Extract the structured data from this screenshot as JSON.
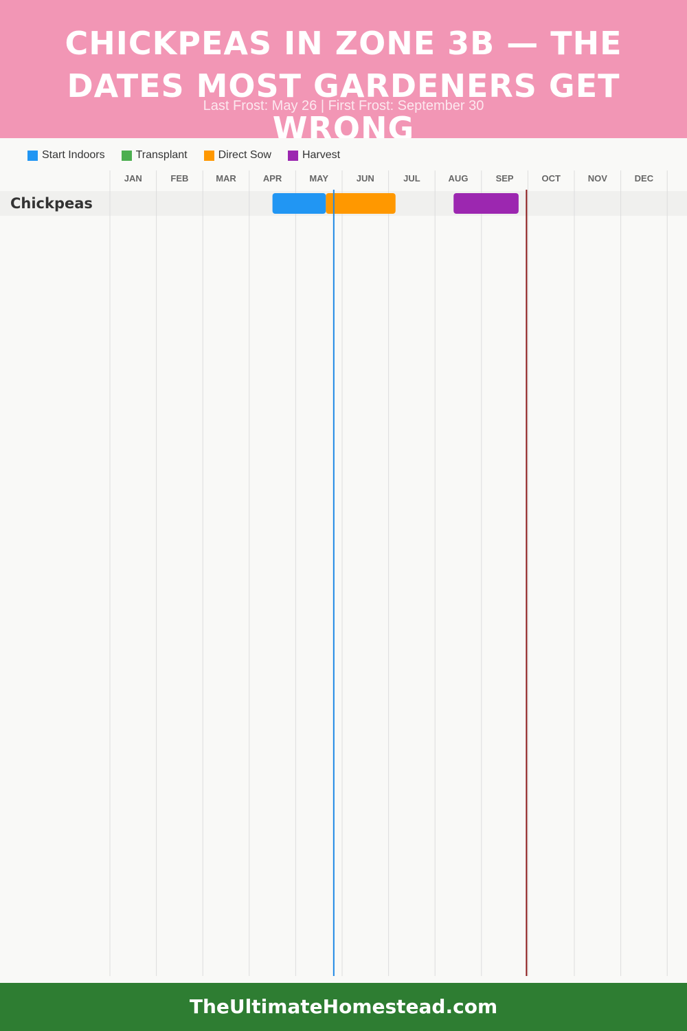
{
  "header": {
    "title": "Chickpeas in Zone 3b — The Dates Most Gardeners Get Wrong",
    "subtitle": "Last Frost: May 26 | First Frost: September 30"
  },
  "colors": {
    "header_bg": "#f296b5",
    "footer_bg": "#2e7d32",
    "last_frost_line": "#1e88e5",
    "first_frost_line": "#8b1a1a"
  },
  "legend": [
    {
      "label": "Start Indoors",
      "color": "#2196f3"
    },
    {
      "label": "Transplant",
      "color": "#4caf50"
    },
    {
      "label": "Direct Sow",
      "color": "#ff9800"
    },
    {
      "label": "Harvest",
      "color": "#9c27b0"
    }
  ],
  "chart_data": {
    "type": "gantt",
    "months": [
      "JAN",
      "FEB",
      "MAR",
      "APR",
      "MAY",
      "JUN",
      "JUL",
      "AUG",
      "SEP",
      "OCT",
      "NOV",
      "DEC"
    ],
    "last_frost": "May 26",
    "first_frost": "September 30",
    "last_frost_month": 4.82,
    "first_frost_month": 8.97,
    "rows": [
      {
        "crop": "Chickpeas",
        "bars": [
          {
            "phase": "Start Indoors",
            "start": 3.5,
            "end": 4.65,
            "color": "#2196f3"
          },
          {
            "phase": "Direct Sow",
            "start": 4.65,
            "end": 6.15,
            "color": "#ff9800"
          },
          {
            "phase": "Harvest",
            "start": 7.4,
            "end": 8.8,
            "color": "#9c27b0"
          }
        ]
      }
    ],
    "legend_position": "top-left",
    "grid": true
  },
  "footer": {
    "site": "TheUltimateHomestead.com"
  }
}
